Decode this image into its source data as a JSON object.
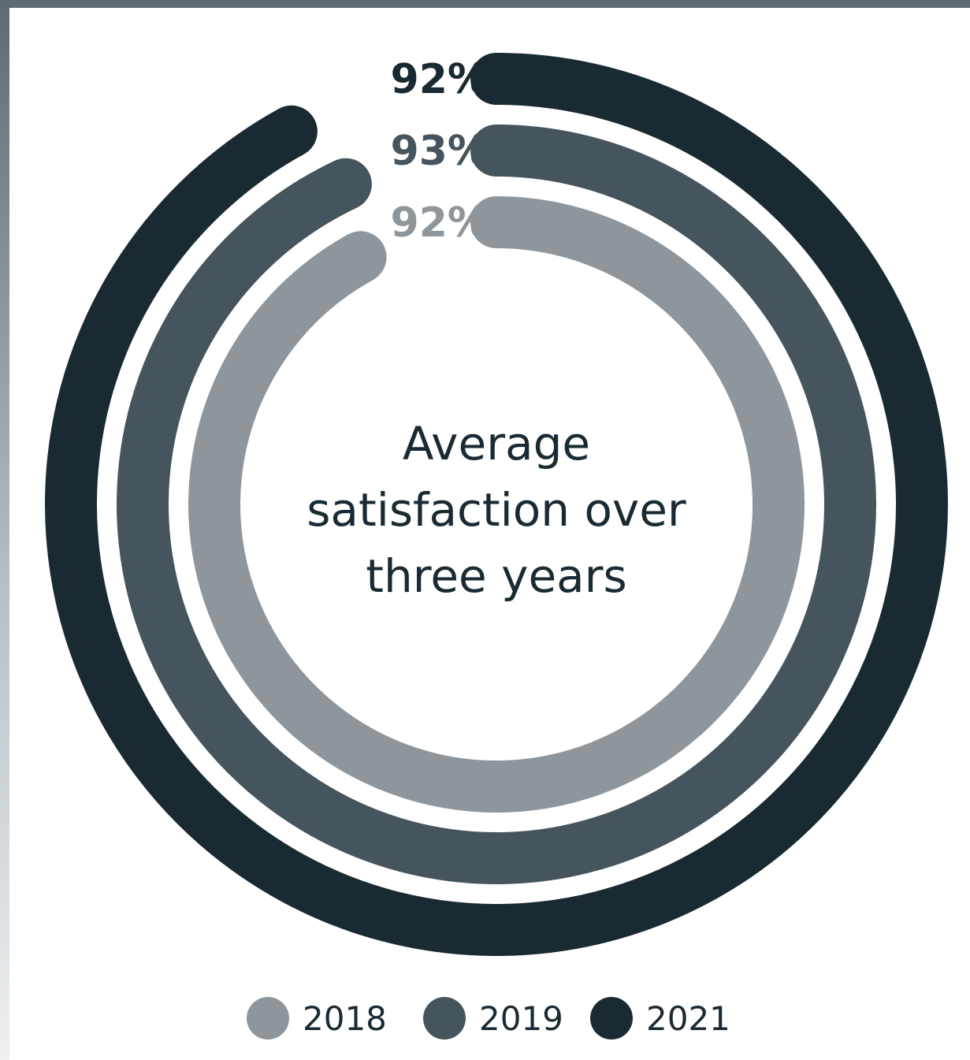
{
  "chart_data": {
    "type": "radial-bar",
    "title": "Average satisfaction over three years",
    "title_lines": [
      "Average",
      "satisfaction over",
      "three years"
    ],
    "unit": "%",
    "max": 100,
    "series": [
      {
        "name": "2018",
        "value": 92,
        "label": "92%",
        "color": "#8e969c"
      },
      {
        "name": "2019",
        "value": 93,
        "label": "93%",
        "color": "#45545d"
      },
      {
        "name": "2021",
        "value": 92,
        "label": "92%",
        "color": "#1a2a33"
      }
    ],
    "legend_position": "bottom"
  }
}
